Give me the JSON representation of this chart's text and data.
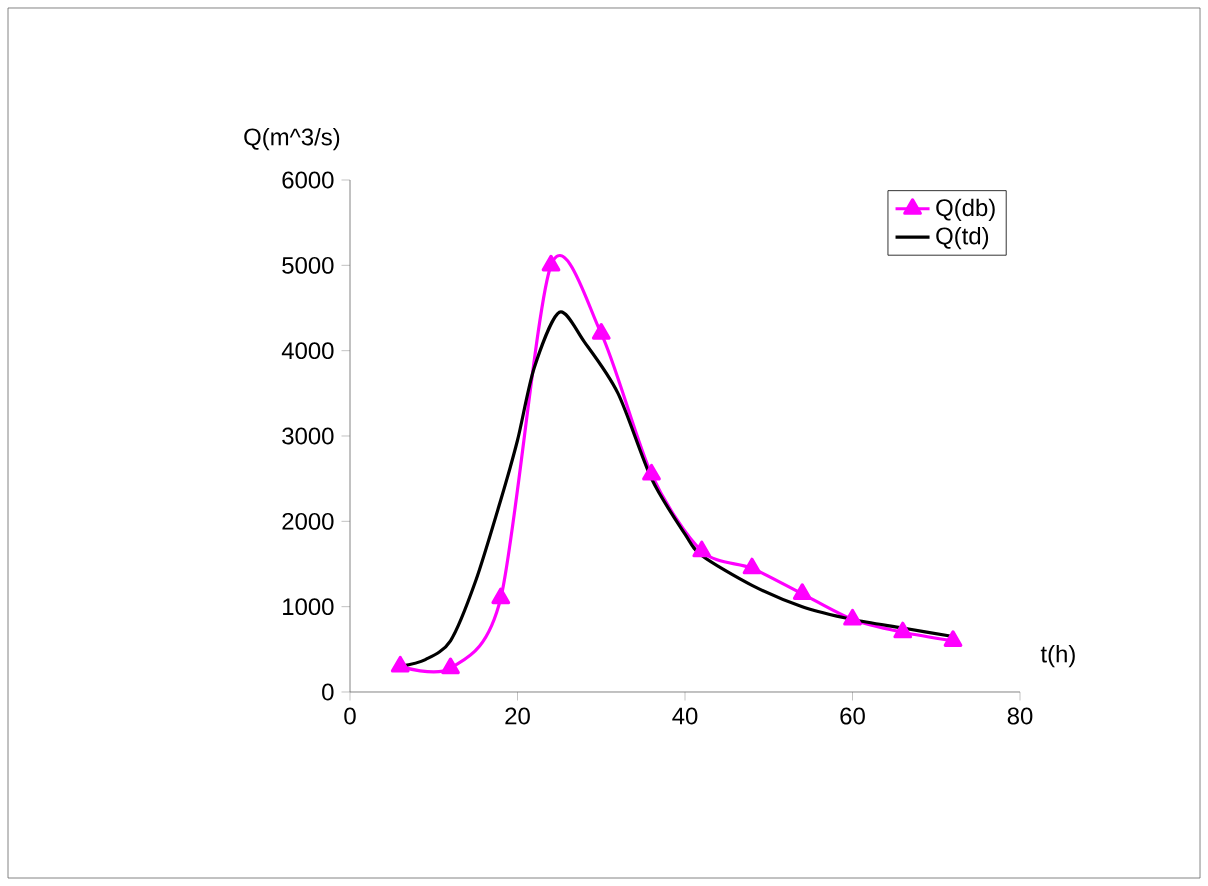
{
  "chart_data": {
    "type": "line",
    "xlabel": "t(h)",
    "ylabel": "Q(m^3/s)",
    "xlim": [
      0,
      80
    ],
    "xticks": [
      0,
      20,
      40,
      60,
      80
    ],
    "ylim": [
      0,
      6000
    ],
    "yticks": [
      0,
      1000,
      2000,
      3000,
      4000,
      5000,
      6000
    ],
    "legend": "top right",
    "grid": false,
    "series": [
      {
        "name": "Q(db)",
        "color": "#ff00ff",
        "marker": "triangle",
        "x": [
          6,
          12,
          18,
          24,
          30,
          36,
          42,
          48,
          54,
          60,
          66,
          72
        ],
        "values": [
          300,
          280,
          1100,
          5000,
          4200,
          2550,
          1650,
          1450,
          1150,
          850,
          700,
          600
        ]
      },
      {
        "name": "Q(td)",
        "color": "#000000",
        "marker": "none",
        "x": [
          6,
          9,
          12,
          15,
          18,
          20,
          22,
          25,
          28,
          32,
          36,
          40,
          42,
          48,
          54,
          60,
          66,
          72
        ],
        "values": [
          300,
          380,
          600,
          1300,
          2250,
          2950,
          3800,
          4450,
          4100,
          3500,
          2500,
          1850,
          1600,
          1250,
          1000,
          850,
          750,
          650
        ]
      }
    ]
  }
}
